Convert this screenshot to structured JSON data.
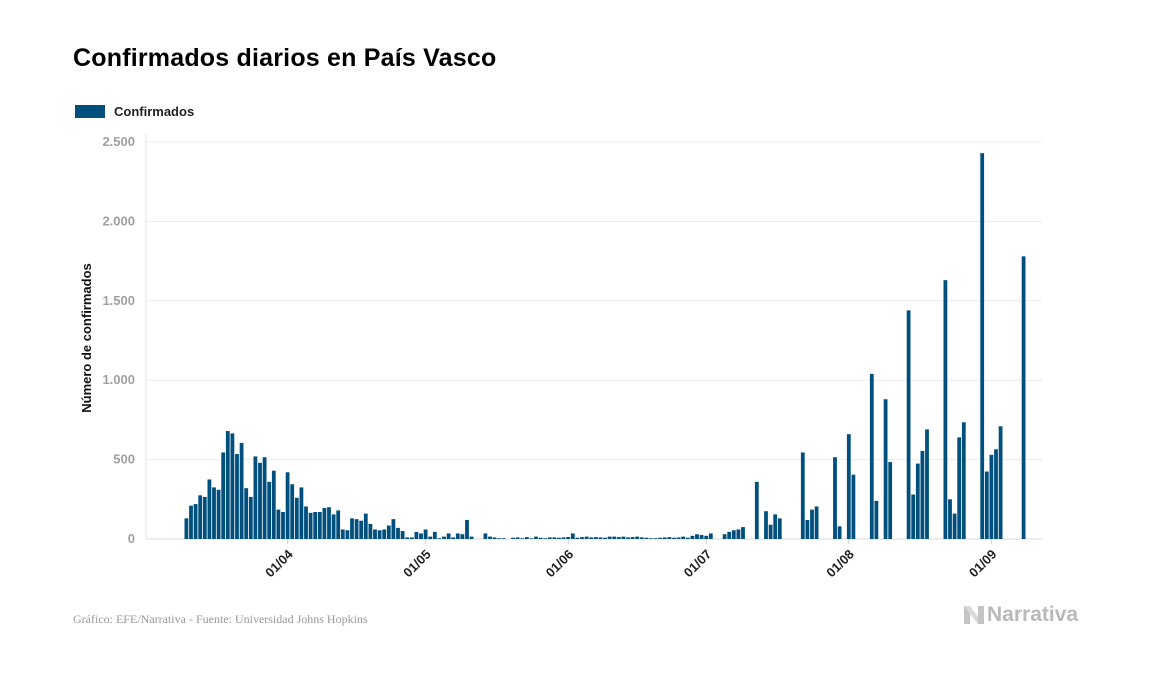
{
  "title": "Confirmados diarios en País Vasco",
  "legend": {
    "label": "Confirmados",
    "color": "#004f7c"
  },
  "source": "Gráfico: EFE/Narrativa - Fuente: Universidad Johns Hopkins",
  "brand": {
    "name": "Narrativa",
    "icon": "narrativa-n-logo"
  },
  "chart_data": {
    "type": "bar",
    "title": "Confirmados diarios en País Vasco",
    "ylabel": "Número de confirmados",
    "xlabel": "",
    "ylim": [
      0,
      2500
    ],
    "yticks": [
      0,
      500,
      1000,
      1500,
      2000,
      2500
    ],
    "ytick_labels": [
      "0",
      "500",
      "1.000",
      "1.500",
      "2.000",
      "2.500"
    ],
    "grid": true,
    "legend_position": "top-left",
    "color": "#004f7c",
    "x_start": "2020-03-10",
    "x_tick_labels": [
      "01/04",
      "01/05",
      "01/06",
      "01/07",
      "01/08",
      "01/09"
    ],
    "x_tick_dates": [
      "2020-04-01",
      "2020-05-01",
      "2020-06-01",
      "2020-07-01",
      "2020-08-01",
      "2020-09-01"
    ],
    "series": [
      {
        "name": "Confirmados",
        "values": [
          130,
          210,
          220,
          275,
          265,
          375,
          325,
          310,
          545,
          680,
          665,
          535,
          605,
          320,
          265,
          520,
          480,
          515,
          360,
          430,
          185,
          170,
          420,
          345,
          260,
          325,
          205,
          165,
          170,
          170,
          195,
          200,
          155,
          180,
          60,
          55,
          130,
          125,
          115,
          160,
          95,
          60,
          55,
          60,
          85,
          125,
          70,
          50,
          10,
          10,
          45,
          35,
          60,
          15,
          45,
          5,
          15,
          35,
          10,
          35,
          30,
          120,
          15,
          0,
          0,
          35,
          15,
          10,
          5,
          5,
          0,
          8,
          10,
          5,
          12,
          5,
          15,
          8,
          5,
          10,
          10,
          8,
          10,
          12,
          35,
          8,
          12,
          15,
          10,
          12,
          10,
          8,
          15,
          15,
          12,
          15,
          10,
          12,
          15,
          10,
          8,
          5,
          5,
          8,
          10,
          12,
          8,
          10,
          15,
          8,
          20,
          30,
          25,
          20,
          35,
          0,
          0,
          30,
          45,
          55,
          60,
          75,
          0,
          0,
          360,
          0,
          175,
          90,
          155,
          130,
          0,
          0,
          0,
          0,
          545,
          120,
          185,
          205,
          0,
          0,
          0,
          515,
          80,
          0,
          660,
          405,
          0,
          0,
          0,
          1040,
          240,
          0,
          880,
          485,
          0,
          0,
          0,
          1440,
          280,
          475,
          555,
          690,
          0,
          0,
          0,
          1630,
          250,
          160,
          640,
          735,
          0,
          0,
          0,
          2430,
          425,
          530,
          565,
          710,
          0,
          0,
          0,
          0,
          1780
        ]
      }
    ]
  }
}
